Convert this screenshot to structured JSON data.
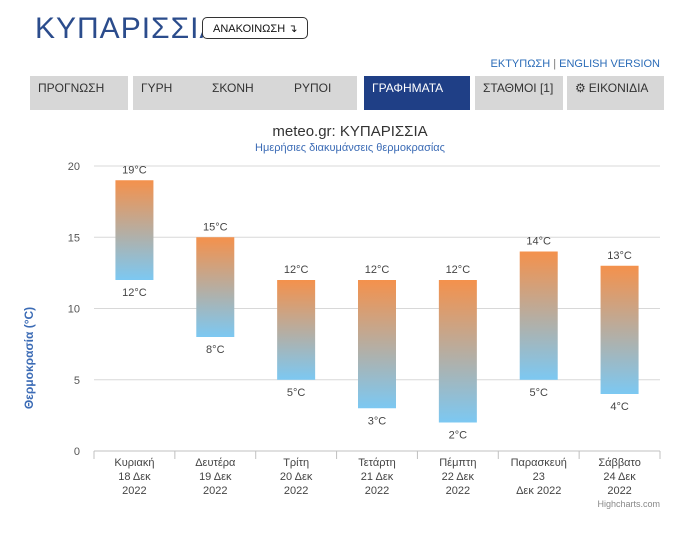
{
  "header": {
    "city": "ΚΥΠΑΡΙΣΣΙΑ",
    "announce_label": "ΑΝΑΚΟΙΝΩΣΗ ↴",
    "print_link": "ΕΚΤΥΠΩΣΗ",
    "separator": "|",
    "english_link": "ENGLISH VERSION"
  },
  "tabs": [
    {
      "label": "ΠΡΟΓΝΩΣΗ",
      "active": false
    },
    {
      "label": "ΓΥΡΗ",
      "active": false
    },
    {
      "label": "ΣΚΟΝΗ",
      "active": false
    },
    {
      "label": "ΡΥΠΟΙ",
      "active": false
    },
    {
      "label": "ΓΡΑΦΗΜΑΤΑ",
      "active": true
    },
    {
      "label": "ΣΤΑΘΜΟΙ [1]",
      "active": false
    },
    {
      "label": "ΕΙΚΟΝΙΔΙΑ",
      "active": false,
      "icon": "gear-icon"
    }
  ],
  "chart_data": {
    "type": "bar",
    "title": "meteo.gr: ΚΥΠΑΡΙΣΣΙΑ",
    "subtitle": "Ημερήσιες διακυμάνσεις θερμοκρασίας",
    "ylabel": "Θερμοκρασία (°C)",
    "ylim": [
      0,
      20
    ],
    "yticks": [
      "0",
      "5",
      "10",
      "15",
      "20"
    ],
    "grid": true,
    "categories": [
      [
        "Κυριακή",
        "18 Δεκ",
        "2022"
      ],
      [
        "Δευτέρα",
        "19 Δεκ",
        "2022"
      ],
      [
        "Τρίτη",
        "20 Δεκ",
        "2022"
      ],
      [
        "Τετάρτη",
        "21 Δεκ",
        "2022"
      ],
      [
        "Πέμπτη",
        "22 Δεκ",
        "2022"
      ],
      [
        "Παρασκευή",
        "23",
        "Δεκ 2022"
      ],
      [
        "Σάββατο",
        "24 Δεκ",
        "2022"
      ]
    ],
    "low": [
      12,
      8,
      5,
      3,
      2,
      5,
      4
    ],
    "high": [
      19,
      15,
      12,
      12,
      12,
      14,
      13
    ],
    "low_labels": [
      "12°C",
      "8°C",
      "5°C",
      "3°C",
      "2°C",
      "5°C",
      "4°C"
    ],
    "high_labels": [
      "19°C",
      "15°C",
      "12°C",
      "12°C",
      "12°C",
      "14°C",
      "13°C"
    ],
    "colors": {
      "top": "#f4914c",
      "bottom": "#7cc8f2",
      "title": "#333333",
      "subtitle": "#3b6bb5",
      "axis_label": "#3b6bb5"
    },
    "credits": "Highcharts.com"
  }
}
